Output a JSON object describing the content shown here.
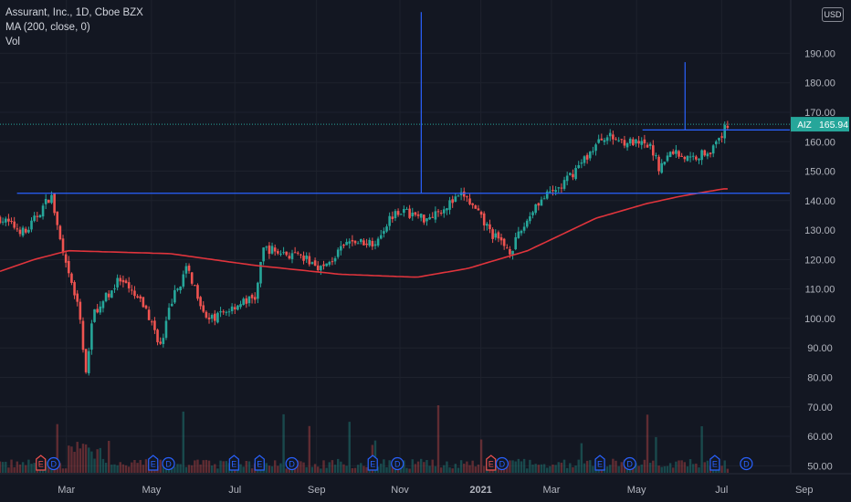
{
  "legend": {
    "title": "Assurant, Inc., 1D, Cboe BZX",
    "ma": "MA (200, close, 0)",
    "vol": "Vol"
  },
  "currency_label": "USD",
  "colors": {
    "background": "#131722",
    "up": "#26a69a",
    "down": "#ef5350",
    "ma": "#e0343c",
    "annotation": "#2962ff",
    "last_price_tag": "#26a69a",
    "earnings": "#ef5350",
    "dividend": "#2962ff"
  },
  "chart_data": {
    "type": "candlestick",
    "symbol": "AIZ",
    "last_price": 165.94,
    "last_price_label": "165.94",
    "y_ticks": [
      "50.00",
      "60.00",
      "70.00",
      "80.00",
      "90.00",
      "100.00",
      "110.00",
      "120.00",
      "130.00",
      "140.00",
      "150.00",
      "160.00",
      "170.00",
      "180.00",
      "190.00"
    ],
    "y_range": [
      47,
      205
    ],
    "x_ticks": [
      "Mar",
      "May",
      "Jul",
      "Sep",
      "Nov",
      "2021",
      "Mar",
      "May",
      "Jul",
      "Sep"
    ],
    "horizontal_levels": [
      142.5,
      164
    ],
    "vertical_markers": [
      {
        "date_index": 0.495,
        "from": 142.5,
        "to": 205
      },
      {
        "date_index": 0.805,
        "from": 164,
        "to": 187
      }
    ],
    "price_anchors": [
      {
        "t": 0.0,
        "p": 134
      },
      {
        "t": 0.03,
        "p": 129
      },
      {
        "t": 0.06,
        "p": 142
      },
      {
        "t": 0.075,
        "p": 120
      },
      {
        "t": 0.095,
        "p": 100
      },
      {
        "t": 0.1,
        "p": 80
      },
      {
        "t": 0.11,
        "p": 102
      },
      {
        "t": 0.14,
        "p": 113
      },
      {
        "t": 0.17,
        "p": 104
      },
      {
        "t": 0.19,
        "p": 90
      },
      {
        "t": 0.2,
        "p": 105
      },
      {
        "t": 0.22,
        "p": 117
      },
      {
        "t": 0.245,
        "p": 99
      },
      {
        "t": 0.28,
        "p": 105
      },
      {
        "t": 0.3,
        "p": 107
      },
      {
        "t": 0.31,
        "p": 124
      },
      {
        "t": 0.36,
        "p": 120
      },
      {
        "t": 0.38,
        "p": 117
      },
      {
        "t": 0.41,
        "p": 126
      },
      {
        "t": 0.44,
        "p": 126
      },
      {
        "t": 0.465,
        "p": 137
      },
      {
        "t": 0.5,
        "p": 134
      },
      {
        "t": 0.545,
        "p": 142
      },
      {
        "t": 0.58,
        "p": 128
      },
      {
        "t": 0.6,
        "p": 123
      },
      {
        "t": 0.63,
        "p": 139
      },
      {
        "t": 0.66,
        "p": 145
      },
      {
        "t": 0.71,
        "p": 162
      },
      {
        "t": 0.765,
        "p": 158
      },
      {
        "t": 0.775,
        "p": 151
      },
      {
        "t": 0.79,
        "p": 157
      },
      {
        "t": 0.81,
        "p": 154
      },
      {
        "t": 0.84,
        "p": 158
      },
      {
        "t": 0.855,
        "p": 166
      }
    ],
    "ma_anchors": [
      {
        "t": 0.0,
        "p": 116
      },
      {
        "t": 0.04,
        "p": 120
      },
      {
        "t": 0.08,
        "p": 123
      },
      {
        "t": 0.2,
        "p": 122
      },
      {
        "t": 0.3,
        "p": 118
      },
      {
        "t": 0.4,
        "p": 115
      },
      {
        "t": 0.49,
        "p": 114
      },
      {
        "t": 0.55,
        "p": 117
      },
      {
        "t": 0.62,
        "p": 123
      },
      {
        "t": 0.7,
        "p": 134
      },
      {
        "t": 0.76,
        "p": 139
      },
      {
        "t": 0.8,
        "p": 141.5
      },
      {
        "t": 0.85,
        "p": 144
      }
    ],
    "events": [
      {
        "type": "E",
        "t": 0.048,
        "color": "earnings"
      },
      {
        "type": "D",
        "t": 0.063,
        "color": "dividend"
      },
      {
        "type": "E",
        "t": 0.18,
        "color": "dividend"
      },
      {
        "type": "D",
        "t": 0.198,
        "color": "dividend"
      },
      {
        "type": "E",
        "t": 0.275,
        "color": "dividend"
      },
      {
        "type": "E",
        "t": 0.305,
        "color": "dividend"
      },
      {
        "type": "D",
        "t": 0.343,
        "color": "dividend"
      },
      {
        "type": "E",
        "t": 0.438,
        "color": "dividend"
      },
      {
        "type": "D",
        "t": 0.467,
        "color": "dividend"
      },
      {
        "type": "E",
        "t": 0.577,
        "color": "earnings"
      },
      {
        "type": "D",
        "t": 0.59,
        "color": "dividend"
      },
      {
        "type": "E",
        "t": 0.705,
        "color": "dividend"
      },
      {
        "type": "D",
        "t": 0.74,
        "color": "dividend"
      },
      {
        "type": "E",
        "t": 0.84,
        "color": "dividend"
      },
      {
        "type": "D",
        "t": 0.877,
        "color": "dividend"
      }
    ]
  }
}
